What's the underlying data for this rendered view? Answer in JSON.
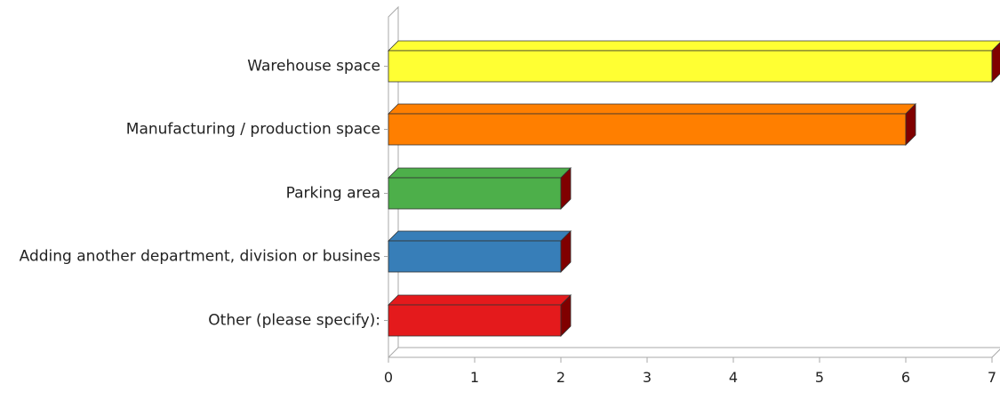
{
  "chart_data": {
    "type": "bar",
    "orientation": "horizontal",
    "three_d": true,
    "categories": [
      "Warehouse space",
      "Manufacturing / production space",
      "Parking area",
      "Adding another department, division or busines",
      "Other (please specify):"
    ],
    "values": [
      7,
      6,
      2,
      2,
      2
    ],
    "colors": [
      "#ffff33",
      "#ff7f00",
      "#4daf4a",
      "#377eb8",
      "#e41a1c"
    ],
    "side_color": "#800000",
    "xlim": [
      0,
      7
    ],
    "xticks": [
      "0",
      "1",
      "2",
      "3",
      "4",
      "5",
      "6",
      "7"
    ],
    "title": "",
    "xlabel": "",
    "ylabel": "",
    "grid": false,
    "legend": "none"
  }
}
